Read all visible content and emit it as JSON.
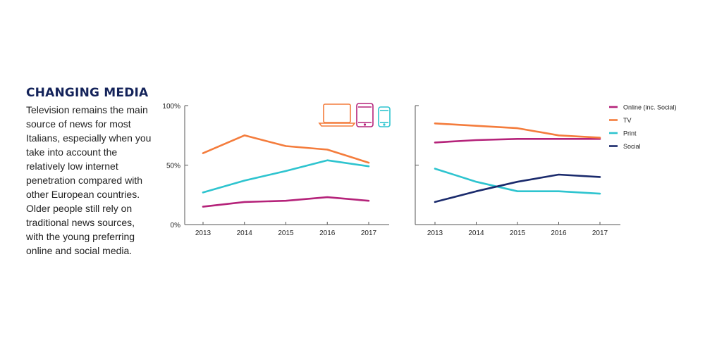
{
  "text": {
    "heading": "CHANGING MEDIA",
    "body": "Television remains the main source of news for most Italians, especially when you take into account the relatively low internet penetration compared with other European countries. Older people still rely on traditional news sources, with the young preferring online and social media."
  },
  "icons": [
    "laptop-icon",
    "tablet-icon",
    "smartphone-icon"
  ],
  "colors": {
    "online": "#b5237a",
    "tv": "#f47c3c",
    "print": "#2ec4cf",
    "social": "#1a2a6c",
    "axis": "#555555",
    "heading": "#14235a"
  },
  "chart_data": [
    {
      "type": "line",
      "title": "",
      "categories": [
        "2013",
        "2014",
        "2015",
        "2016",
        "2017"
      ],
      "ylim": [
        0,
        100
      ],
      "yticks": [
        "0%",
        "50%",
        "100%"
      ],
      "ytick_values": [
        0,
        50,
        100
      ],
      "series": [
        {
          "name": "Online (inc. Social)",
          "color_key": "online",
          "values": [
            15,
            19,
            20,
            23,
            20
          ]
        },
        {
          "name": "TV",
          "color_key": "tv",
          "values": [
            60,
            75,
            66,
            63,
            52
          ]
        },
        {
          "name": "Print",
          "color_key": "print",
          "values": [
            27,
            37,
            45,
            54,
            49
          ]
        }
      ]
    },
    {
      "type": "line",
      "title": "",
      "categories": [
        "2013",
        "2014",
        "2015",
        "2016",
        "2017"
      ],
      "ylim": [
        0,
        100
      ],
      "legend_position": "right",
      "series": [
        {
          "name": "Online (inc. Social)",
          "color_key": "online",
          "values": [
            69,
            71,
            72,
            72,
            72
          ]
        },
        {
          "name": "TV",
          "color_key": "tv",
          "values": [
            85,
            83,
            81,
            75,
            73
          ]
        },
        {
          "name": "Print",
          "color_key": "print",
          "values": [
            47,
            36,
            28,
            28,
            26
          ]
        },
        {
          "name": "Social",
          "color_key": "social",
          "values": [
            19,
            28,
            36,
            42,
            40
          ]
        }
      ]
    }
  ]
}
